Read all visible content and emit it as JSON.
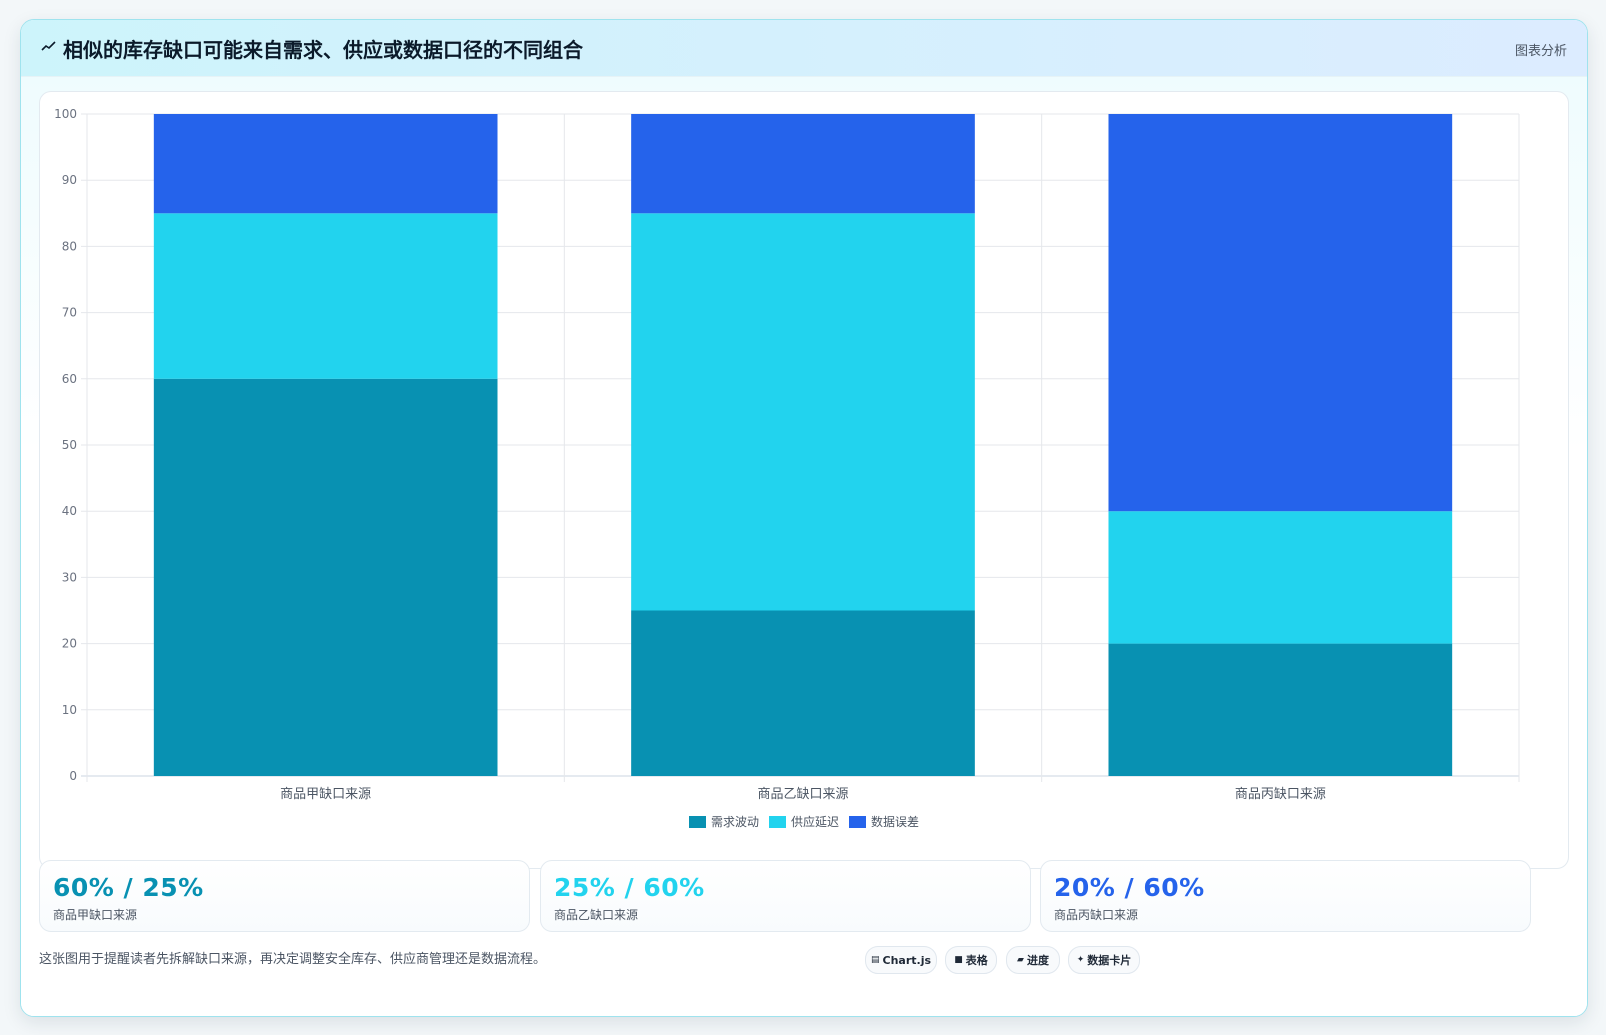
{
  "header": {
    "title": "相似的库存缺口可能来自需求、供应或数据口径的不同组合",
    "title_icon": "trend-line-icon",
    "link_label": "图表分析"
  },
  "chart_data": {
    "type": "bar",
    "stacked": true,
    "categories": [
      "商品甲缺口来源",
      "商品乙缺口来源",
      "商品丙缺口来源"
    ],
    "series": [
      {
        "name": "需求波动",
        "values": [
          60,
          25,
          20
        ],
        "color": "#0891b2"
      },
      {
        "name": "供应延迟",
        "values": [
          25,
          60,
          20
        ],
        "color": "#22d3ee"
      },
      {
        "name": "数据误差",
        "values": [
          15,
          15,
          60
        ],
        "color": "#2563eb"
      }
    ],
    "ylim": [
      0,
      100
    ],
    "yticks": [
      0,
      10,
      20,
      30,
      40,
      50,
      60,
      70,
      80,
      90,
      100
    ],
    "grid": true,
    "legend": "bottom"
  },
  "stats": [
    {
      "value": "60% / 25%",
      "label": "商品甲缺口来源",
      "color": "#0891b2"
    },
    {
      "value": "25% / 60%",
      "label": "商品乙缺口来源",
      "color": "#22d3ee"
    },
    {
      "value": "20% / 60%",
      "label": "商品丙缺口来源",
      "color": "#2563eb"
    }
  ],
  "footnote": "这张图用于提醒读者先拆解缺口来源，再决定调整安全库存、供应商管理还是数据流程。",
  "chips": [
    {
      "glyph": "▤",
      "label": "Chart.js",
      "icon": "chart-icon"
    },
    {
      "glyph": "■",
      "label": "表格",
      "icon": "table-icon"
    },
    {
      "glyph": "▰",
      "label": "进度",
      "icon": "progress-icon"
    },
    {
      "glyph": "✦",
      "label": "数据卡片",
      "icon": "card-icon"
    }
  ]
}
